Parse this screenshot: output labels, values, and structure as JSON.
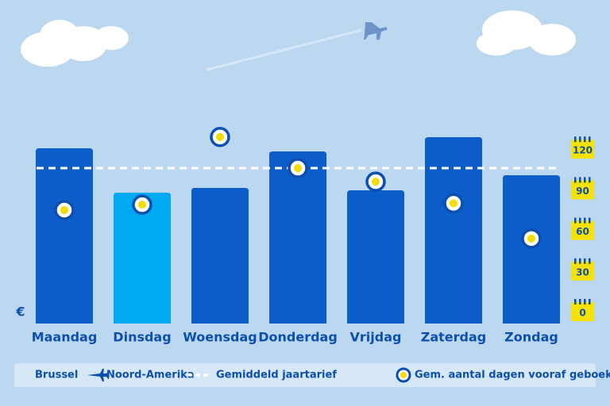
{
  "chart_data": {
    "type": "bar",
    "currency_label": "€",
    "route_from": "Brussel",
    "route_to": "Noord-Amerika",
    "categories": [
      "Maandag",
      "Dinsdag",
      "Woensdag",
      "Donderdag",
      "Vrijdag",
      "Zaterdag",
      "Zondag"
    ],
    "values": [
      221,
      165,
      171,
      217,
      168,
      235,
      187
    ],
    "colors": [
      "#0b5ec9",
      "#00aaf2",
      "#0b5ec9",
      "#0b5ec9",
      "#0b5ec9",
      "#0b5ec9",
      "#0b5ec9"
    ],
    "ylim": [
      0,
      250
    ],
    "average": {
      "name": "Gemiddeld jaartarief",
      "value": 196,
      "color": "#ffffff"
    },
    "days": {
      "name": "Gem. aantal dagen vooraf geboekt",
      "axis": "y2",
      "values": [
        75,
        79,
        129,
        106,
        96,
        80,
        54
      ]
    },
    "y2lim": [
      0,
      140
    ],
    "y2ticks": [
      0,
      30,
      60,
      90,
      120
    ]
  }
}
